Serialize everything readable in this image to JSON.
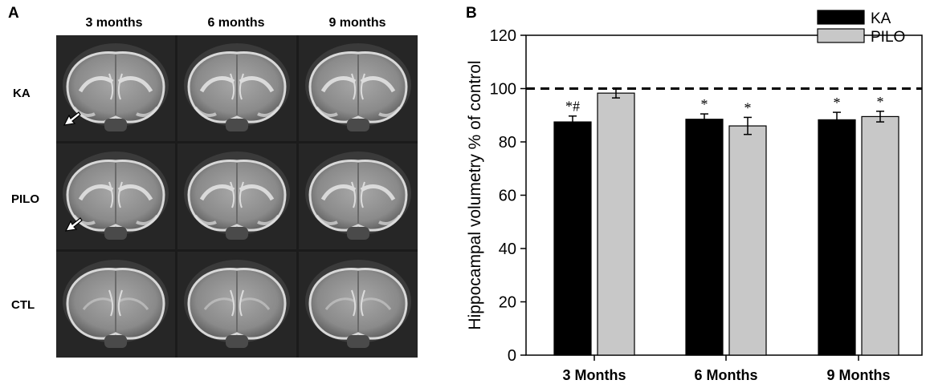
{
  "panel_a": {
    "letter": "A",
    "columns": [
      "3 months",
      "6 months",
      "9 months"
    ],
    "rows": [
      "KA",
      "PILO",
      "CTL"
    ]
  },
  "panel_b": {
    "letter": "B"
  },
  "colors": {
    "ka": "#000000",
    "pilo": "#c8c8c8",
    "reference_line": "#000000"
  },
  "chart_data": {
    "type": "bar",
    "categories": [
      "3 Months",
      "6 Months",
      "9 Months"
    ],
    "series": [
      {
        "name": "KA",
        "values": [
          87.5,
          88.5,
          88.3
        ],
        "errors": [
          2.2,
          2.0,
          2.8
        ],
        "annotations": [
          "*#",
          "*",
          "*"
        ]
      },
      {
        "name": "PILO",
        "values": [
          98.3,
          86.0,
          89.5
        ],
        "errors": [
          1.8,
          3.2,
          2.0
        ],
        "annotations": [
          "",
          "*",
          "*"
        ]
      }
    ],
    "xlabel": "",
    "ylabel": "Hippocampal volumetry % of control",
    "ylim": [
      0,
      120
    ],
    "yticks": [
      0,
      20,
      40,
      60,
      80,
      100,
      120
    ],
    "reference_line": 100,
    "legend_position": "top-right",
    "grid": false
  }
}
